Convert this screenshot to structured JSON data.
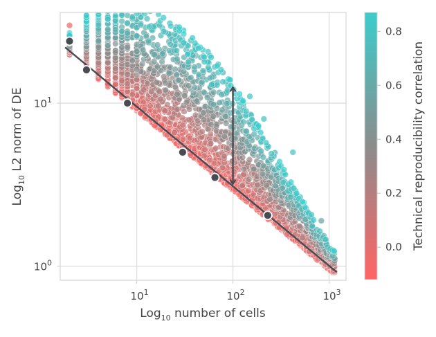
{
  "chart_data": {
    "type": "scatter",
    "title": "",
    "xlabel": {
      "prefix": "Log",
      "sub": "10",
      "rest": " number of cells"
    },
    "ylabel": {
      "prefix": "Log",
      "sub": "10",
      "rest": " L2 norm of DE"
    },
    "x_scale": "log",
    "y_scale": "log",
    "xlim": [
      1.6,
      1500
    ],
    "ylim": [
      0.82,
      36
    ],
    "grid": true,
    "x_ticks": [
      {
        "value": 10,
        "base": "10",
        "exp": "1"
      },
      {
        "value": 100,
        "base": "10",
        "exp": "2"
      },
      {
        "value": 1000,
        "base": "10",
        "exp": "3"
      }
    ],
    "y_ticks": [
      {
        "value": 1,
        "base": "10",
        "exp": "0"
      },
      {
        "value": 10,
        "base": "10",
        "exp": "1"
      }
    ],
    "fit_line": {
      "from": [
        1.8,
        22.0
      ],
      "to": [
        1200,
        0.92
      ],
      "color": "#4a4a52"
    },
    "fit_points": [
      {
        "x": 2,
        "y": 24.0
      },
      {
        "x": 3,
        "y": 16.0
      },
      {
        "x": 8,
        "y": 10.0
      },
      {
        "x": 30,
        "y": 5.0
      },
      {
        "x": 65,
        "y": 3.5
      },
      {
        "x": 230,
        "y": 2.05
      }
    ],
    "arrow": {
      "x": 100,
      "y_from": 3.2,
      "y_to": 12.5,
      "color": "#4a4a52"
    },
    "colorbar": {
      "label": "Technical reproducibility correlation",
      "range": [
        -0.12,
        0.87
      ],
      "low_color": "#ff6464",
      "mid_color": "#8c8c8c",
      "high_color": "#3ccccc",
      "ticks": [
        {
          "value": 0.0,
          "label": "0.0"
        },
        {
          "value": 0.2,
          "label": "0.2"
        },
        {
          "value": 0.4,
          "label": "0.4"
        },
        {
          "value": 0.6,
          "label": "0.6"
        },
        {
          "value": 0.8,
          "label": "0.8"
        }
      ]
    },
    "cloud": {
      "seed": 7,
      "count": 3200,
      "x_range": [
        2,
        1150
      ],
      "edge_points": [
        {
          "x": 2,
          "y": 30.0,
          "c": -0.05
        },
        {
          "x": 2,
          "y": 27.0,
          "c": -0.02
        },
        {
          "x": 60,
          "y": 13.0,
          "c": 0.8
        },
        {
          "x": 95,
          "y": 12.8,
          "c": 0.82
        },
        {
          "x": 150,
          "y": 11.0,
          "c": 0.8
        },
        {
          "x": 210,
          "y": 8.0,
          "c": 0.8
        },
        {
          "x": 420,
          "y": 5.0,
          "c": 0.78
        },
        {
          "x": 830,
          "y": 1.9,
          "c": 0.55
        },
        {
          "x": 1150,
          "y": 1.1,
          "c": 0.05
        },
        {
          "x": 20,
          "y": 12.0,
          "c": 0.4
        },
        {
          "x": 40,
          "y": 12.5,
          "c": 0.55
        }
      ]
    }
  }
}
